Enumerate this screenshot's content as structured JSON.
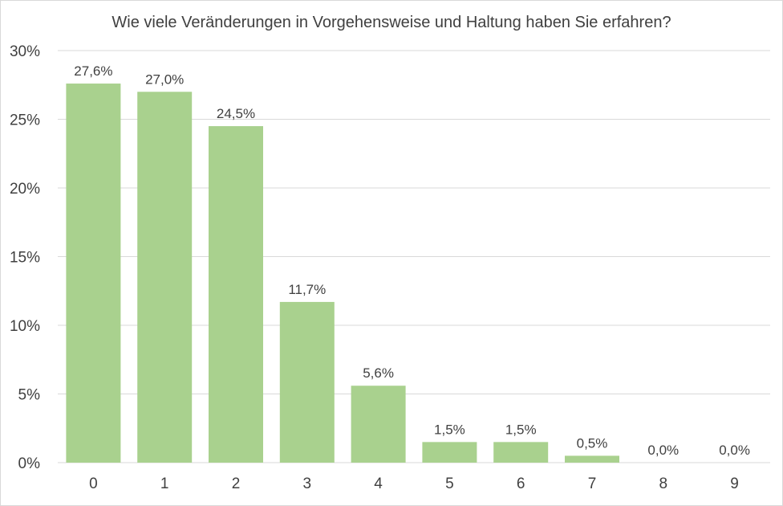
{
  "chart_data": {
    "type": "bar",
    "title": "Wie viele Veränderungen in Vorgehensweise und Haltung haben Sie erfahren?",
    "xlabel": "",
    "ylabel": "",
    "categories": [
      "0",
      "1",
      "2",
      "3",
      "4",
      "5",
      "6",
      "7",
      "8",
      "9"
    ],
    "values": [
      27.6,
      27.0,
      24.5,
      11.7,
      5.6,
      1.5,
      1.5,
      0.5,
      0.0,
      0.0
    ],
    "data_labels": [
      "27,6%",
      "27,0%",
      "24,5%",
      "11,7%",
      "5,6%",
      "1,5%",
      "1,5%",
      "0,5%",
      "0,0%",
      "0,0%"
    ],
    "ylim": [
      0,
      30
    ],
    "yticks": [
      0,
      5,
      10,
      15,
      20,
      25,
      30
    ],
    "ytick_labels": [
      "0%",
      "5%",
      "10%",
      "15%",
      "20%",
      "25%",
      "30%"
    ],
    "grid": true,
    "legend": "none",
    "bar_color": "#a9d18e",
    "grid_color": "#d9d9d9"
  }
}
